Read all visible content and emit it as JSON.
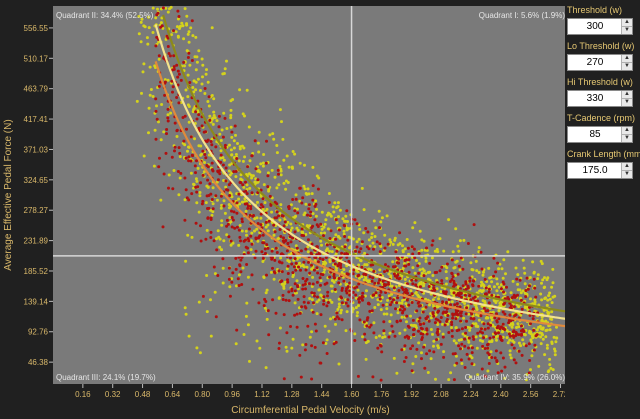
{
  "chart_data": {
    "type": "scatter",
    "title": "",
    "xlabel": "Circumferential Pedal Velocity (m/s)",
    "ylabel": "Average Effective Pedal Force (N)",
    "xlim": [
      0.0,
      2.76
    ],
    "ylim": [
      13.0,
      590.0
    ],
    "x_ticks": [
      "0.16",
      "0.32",
      "0.48",
      "0.64",
      "0.80",
      "0.96",
      "1.12",
      "1.28",
      "1.44",
      "1.60",
      "1.76",
      "1.92",
      "2.08",
      "2.24",
      "2.40",
      "2.56",
      "2.72"
    ],
    "y_ticks": [
      "46.38",
      "92.76",
      "139.14",
      "185.52",
      "231.89",
      "278.27",
      "324.65",
      "371.03",
      "417.41",
      "463.79",
      "510.17",
      "556.55"
    ],
    "quadrant_divider": {
      "x": 1.6,
      "y": 208.6
    },
    "quadrants": {
      "q1": "Quadrant I: 5.6% (1.9%)",
      "q2": "Quadrant II: 34.4% (52.5%)",
      "q3": "Quadrant III: 24.1% (19.7%)",
      "q4": "Quadrant IV: 35.9% (26.0%)"
    },
    "curves": [
      {
        "role": "lo_threshold",
        "color": "#e08a3c",
        "k": 278
      },
      {
        "role": "threshold",
        "color": "#f3e28c",
        "k": 309
      },
      {
        "role": "hi_threshold",
        "color": "#8c8a1c",
        "k": 340
      }
    ],
    "series": [
      {
        "color": "#d4d21c",
        "values_sample": [
          [
            0.72,
            330
          ],
          [
            0.96,
            300
          ],
          [
            1.28,
            260
          ],
          [
            1.44,
            240
          ],
          [
            1.6,
            200
          ],
          [
            1.76,
            170
          ],
          [
            1.92,
            150
          ],
          [
            2.08,
            130
          ],
          [
            2.24,
            110
          ],
          [
            2.4,
            95
          ],
          [
            2.56,
            80
          ]
        ]
      },
      {
        "color": "#b01010",
        "values_sample": [
          [
            0.64,
            420
          ],
          [
            0.8,
            380
          ],
          [
            0.96,
            350
          ],
          [
            1.12,
            300
          ],
          [
            1.28,
            260
          ],
          [
            1.44,
            220
          ],
          [
            1.6,
            190
          ],
          [
            1.76,
            160
          ],
          [
            1.92,
            140
          ],
          [
            2.08,
            120
          ],
          [
            2.24,
            100
          ],
          [
            2.4,
            90
          ],
          [
            2.56,
            70
          ]
        ]
      }
    ],
    "background": "#7a7a7a",
    "grid": false
  },
  "panel": {
    "fields": [
      {
        "label": "Threshold (w)",
        "value": "300"
      },
      {
        "label": "Lo Threshold (w)",
        "value": "270"
      },
      {
        "label": "Hi Threshold (w)",
        "value": "330"
      },
      {
        "label": "T-Cadence (rpm)",
        "value": "85"
      },
      {
        "label": "Crank Length (mm)",
        "value": "175.0"
      }
    ]
  }
}
